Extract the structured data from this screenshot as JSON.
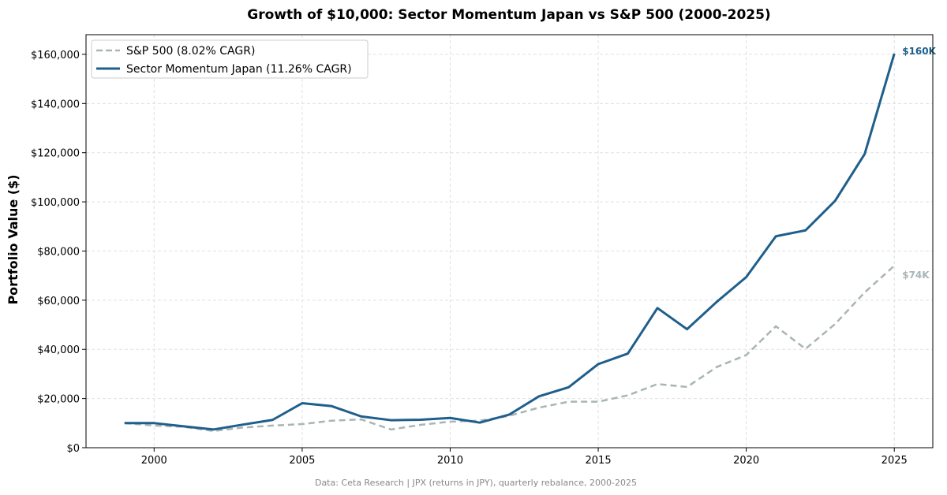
{
  "chart_data": {
    "type": "line",
    "title": "Growth of $10,000: Sector Momentum Japan vs S&P 500 (2000-2025)",
    "xlabel": "",
    "ylabel": "Portfolio Value ($)",
    "xlim": [
      1997.7,
      2026.3
    ],
    "ylim": [
      0,
      168000
    ],
    "grid": true,
    "legend": "top-left",
    "x_ticks": [
      2000,
      2005,
      2010,
      2015,
      2020,
      2025
    ],
    "y_ticks": [
      0,
      20000,
      40000,
      60000,
      80000,
      100000,
      120000,
      140000,
      160000
    ],
    "y_tick_labels": [
      "$0",
      "$20,000",
      "$40,000",
      "$60,000",
      "$80,000",
      "$100,000",
      "$120,000",
      "$140,000",
      "$160,000"
    ],
    "x": [
      1999,
      2000,
      2001,
      2002,
      2003,
      2004,
      2005,
      2006,
      2007,
      2008,
      2009,
      2010,
      2011,
      2012,
      2013,
      2014,
      2015,
      2016,
      2017,
      2018,
      2019,
      2020,
      2021,
      2022,
      2023,
      2024,
      2025
    ],
    "series": [
      {
        "name": "S&P 500 (8.02% CAGR)",
        "color": "#a9b5b5",
        "style": "dashed",
        "end_label": "$74K",
        "values": [
          10000,
          9000,
          8500,
          6800,
          8200,
          9000,
          9600,
          11000,
          11500,
          7400,
          9300,
          10600,
          11000,
          13000,
          16300,
          18700,
          18700,
          21300,
          25900,
          24700,
          32800,
          37700,
          49400,
          40200,
          50300,
          63200,
          74000
        ]
      },
      {
        "name": "Sector Momentum Japan (11.26% CAGR)",
        "color": "#1f5f8b",
        "style": "solid",
        "end_label": "$160K",
        "values": [
          10000,
          10000,
          8700,
          7400,
          9400,
          11300,
          18100,
          16900,
          12700,
          11200,
          11400,
          12100,
          10200,
          13500,
          20900,
          24600,
          34000,
          38300,
          56800,
          48200,
          59300,
          69400,
          86000,
          88400,
          100400,
          119500,
          160300
        ]
      }
    ],
    "footnote": "Data: Ceta Research | JPX (returns in JPY), quarterly rebalance, 2000-2025"
  }
}
